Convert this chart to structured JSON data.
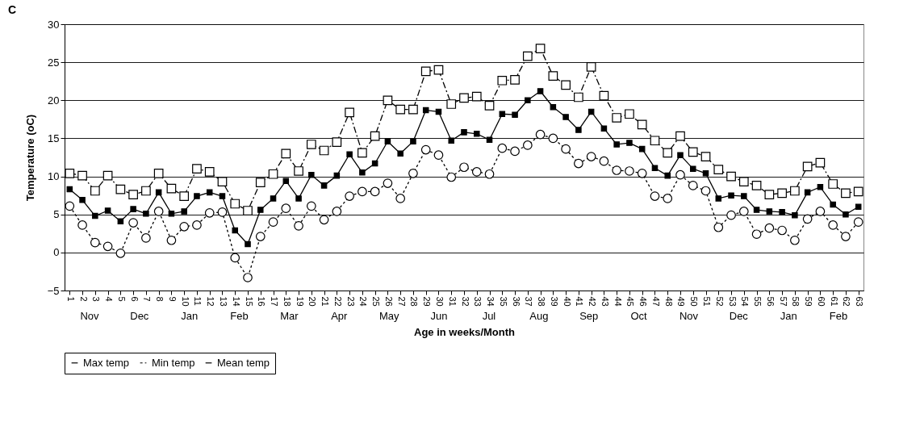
{
  "chart_data": {
    "type": "line",
    "title": "C",
    "xlabel": "Age in weeks/Month",
    "ylabel": "Temperature (oC)",
    "categories": [
      "1",
      "2",
      "3",
      "4",
      "5",
      "6",
      "7",
      "8",
      "9",
      "10",
      "11",
      "12",
      "13",
      "14",
      "15",
      "16",
      "17",
      "18",
      "19",
      "20",
      "21",
      "22",
      "23",
      "24",
      "25",
      "26",
      "27",
      "28",
      "29",
      "30",
      "31",
      "32",
      "33",
      "34",
      "35",
      "36",
      "37",
      "38",
      "39",
      "40",
      "41",
      "42",
      "43",
      "44",
      "45",
      "46",
      "47",
      "48",
      "49",
      "50",
      "51",
      "52",
      "53",
      "54",
      "55",
      "56",
      "57",
      "58",
      "59",
      "60",
      "61",
      "62",
      "63"
    ],
    "series": [
      {
        "name": "Max temp",
        "color": "#000000",
        "marker": "square",
        "line_style": "dashed",
        "values": [
          10.4,
          10.1,
          8.1,
          10.1,
          8.3,
          7.6,
          8.1,
          10.4,
          8.4,
          7.4,
          11.0,
          10.6,
          9.3,
          6.4,
          5.5,
          9.2,
          10.3,
          13.0,
          10.7,
          14.2,
          13.4,
          14.5,
          18.4,
          13.1,
          15.3,
          20.0,
          18.8,
          18.8,
          23.8,
          24.0,
          19.5,
          20.3,
          20.5,
          19.3,
          22.6,
          22.7,
          25.8,
          26.8,
          23.2,
          22.0,
          20.4,
          24.4,
          20.6,
          17.7,
          18.2,
          16.8,
          14.7,
          13.1,
          15.3,
          13.2,
          12.6,
          10.9,
          10.0,
          9.3,
          8.8,
          7.6,
          7.8,
          8.1,
          11.3,
          11.8,
          9.0,
          7.8,
          8.0
        ]
      },
      {
        "name": "Min temp",
        "color": "#000000",
        "marker": "circle",
        "line_style": "dotted",
        "values": [
          6.1,
          3.6,
          1.3,
          0.8,
          -0.1,
          3.9,
          1.9,
          5.4,
          1.6,
          3.4,
          3.6,
          5.2,
          5.3,
          -0.7,
          -3.3,
          2.1,
          4.0,
          5.8,
          3.5,
          6.1,
          4.3,
          5.4,
          7.4,
          8.0,
          8.0,
          9.1,
          7.1,
          10.4,
          13.5,
          12.8,
          9.9,
          11.2,
          10.6,
          10.3,
          13.7,
          13.3,
          14.1,
          15.5,
          15.0,
          13.6,
          11.7,
          12.6,
          12.0,
          10.8,
          10.7,
          10.4,
          7.4,
          7.1,
          10.2,
          8.8,
          8.1,
          3.3,
          4.9,
          5.4,
          2.4,
          3.2,
          2.9,
          1.6,
          4.4,
          5.4,
          3.6,
          2.1,
          4.0
        ]
      },
      {
        "name": "Mean temp",
        "color": "#000000",
        "marker": "square",
        "line_style": "solid",
        "values": [
          8.3,
          6.9,
          4.8,
          5.5,
          4.1,
          5.7,
          5.1,
          7.9,
          5.1,
          5.4,
          7.4,
          7.9,
          7.4,
          2.9,
          1.1,
          5.6,
          7.1,
          9.4,
          7.1,
          10.2,
          8.8,
          10.1,
          12.9,
          10.5,
          11.7,
          14.6,
          13.0,
          14.6,
          18.7,
          18.5,
          14.7,
          15.8,
          15.6,
          14.8,
          18.2,
          18.1,
          20.0,
          21.2,
          19.1,
          17.8,
          16.1,
          18.5,
          16.3,
          14.2,
          14.4,
          13.6,
          11.1,
          10.1,
          12.8,
          11.0,
          10.4,
          7.1,
          7.5,
          7.4,
          5.6,
          5.4,
          5.3,
          4.9,
          7.9,
          8.6,
          6.3,
          5.0,
          6.0
        ]
      }
    ],
    "annotations": [
      "Nov",
      "Dec",
      "Jan",
      "Feb",
      "Mar",
      "Apr",
      "May",
      "Jun",
      "Jul",
      "Aug",
      "Sep",
      "Oct",
      "Nov",
      "Dec",
      "Jan",
      "Feb"
    ],
    "ylim": [
      -5,
      30
    ],
    "yticks": [
      -5,
      0,
      5,
      10,
      15,
      20,
      25,
      30
    ],
    "grid": "y",
    "legend": "bottom"
  }
}
